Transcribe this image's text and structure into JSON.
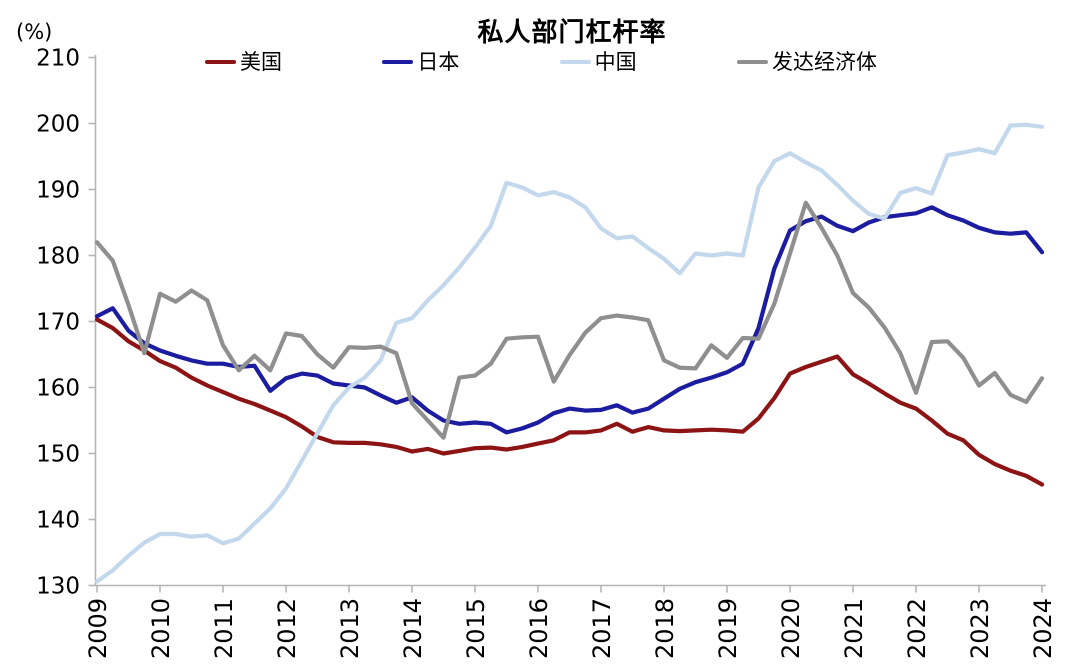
{
  "header": {
    "unit_label": "(%)",
    "title": "私人部门杠杆率"
  },
  "legend": [
    {
      "label": "美国",
      "color": "#8D1414"
    },
    {
      "label": "日本",
      "color": "#1C1CA0"
    },
    {
      "label": "中国",
      "color": "#C3D8EC"
    },
    {
      "label": "发达经济体",
      "color": "#8F8F8F"
    }
  ],
  "chart_data": {
    "type": "line",
    "title": "私人部门杠杆率",
    "ylabel": "(%)",
    "xlabel": "",
    "grid": false,
    "legend_position": "top",
    "x_frequency": "quarterly",
    "x_start": "2009Q1",
    "x_end": "2024Q1",
    "x_tick_labels": [
      "2009",
      "2010",
      "2011",
      "2012",
      "2013",
      "2014",
      "2015",
      "2016",
      "2017",
      "2018",
      "2019",
      "2020",
      "2021",
      "2022",
      "2023",
      "2024"
    ],
    "ylim": [
      130,
      210
    ],
    "y_tick_labels": [
      210,
      200,
      190,
      180,
      170,
      160,
      150,
      140,
      130
    ],
    "series": [
      {
        "id": "us",
        "name": "美国",
        "color": "#8D1414",
        "values": [
          170.3,
          169.0,
          167.0,
          165.6,
          164.0,
          163.0,
          161.5,
          160.3,
          159.3,
          158.3,
          157.5,
          156.5,
          155.5,
          154.1,
          152.5,
          151.7,
          151.6,
          151.6,
          151.4,
          151.0,
          150.3,
          150.7,
          150.0,
          150.4,
          150.8,
          150.9,
          150.6,
          151.0,
          151.5,
          152.0,
          153.2,
          153.2,
          153.5,
          154.5,
          153.3,
          154.0,
          153.5,
          153.4,
          153.5,
          153.6,
          153.5,
          153.3,
          155.3,
          158.4,
          162.1,
          163.1,
          163.9,
          164.7,
          162.0,
          160.6,
          159.1,
          157.7,
          156.8,
          155.0,
          153.0,
          152.0,
          149.8,
          148.4,
          147.4,
          146.6,
          145.3
        ]
      },
      {
        "id": "japan",
        "name": "日本",
        "color": "#1C1CA0",
        "values": [
          170.8,
          172.0,
          168.6,
          166.7,
          165.6,
          164.8,
          164.1,
          163.6,
          163.6,
          163.1,
          163.3,
          159.5,
          161.4,
          162.1,
          161.8,
          160.6,
          160.3,
          160.0,
          158.8,
          157.7,
          158.5,
          156.5,
          155.0,
          154.5,
          154.7,
          154.5,
          153.2,
          153.8,
          154.7,
          156.1,
          156.8,
          156.5,
          156.6,
          157.3,
          156.2,
          156.8,
          158.3,
          159.8,
          160.8,
          161.5,
          162.3,
          163.6,
          169.0,
          178.0,
          183.8,
          185.2,
          185.9,
          184.5,
          183.7,
          185.0,
          185.8,
          186.1,
          186.4,
          187.3,
          186.1,
          185.3,
          184.2,
          183.5,
          183.3,
          183.5,
          180.5
        ]
      },
      {
        "id": "china",
        "name": "中国",
        "color": "#C3D8EC",
        "values": [
          130.6,
          132.3,
          134.5,
          136.5,
          137.8,
          137.8,
          137.4,
          137.6,
          136.4,
          137.1,
          139.4,
          141.7,
          144.7,
          148.9,
          153.1,
          157.3,
          160.0,
          161.5,
          164.1,
          169.8,
          170.5,
          173.2,
          175.5,
          178.2,
          181.2,
          184.5,
          191.0,
          190.3,
          189.1,
          189.6,
          188.8,
          187.3,
          184.1,
          182.6,
          182.9,
          181.1,
          179.5,
          177.3,
          180.3,
          180.0,
          180.3,
          180.0,
          190.3,
          194.3,
          195.5,
          194.1,
          192.9,
          190.7,
          188.3,
          186.3,
          185.6,
          189.5,
          190.2,
          189.4,
          195.2,
          195.6,
          196.1,
          195.5,
          199.7,
          199.8,
          199.5
        ]
      },
      {
        "id": "dm",
        "name": "发达经济体",
        "color": "#8F8F8F",
        "values": [
          182.0,
          179.2,
          172.5,
          165.2,
          174.2,
          173.0,
          174.7,
          173.2,
          166.4,
          162.6,
          164.8,
          162.6,
          168.2,
          167.8,
          165.0,
          163.0,
          166.1,
          166.0,
          166.2,
          165.2,
          157.6,
          155.0,
          152.4,
          161.5,
          161.8,
          163.6,
          167.4,
          167.6,
          167.7,
          160.9,
          164.9,
          168.3,
          170.5,
          170.9,
          170.6,
          170.2,
          164.1,
          163.0,
          162.9,
          166.4,
          164.5,
          167.5,
          167.4,
          172.7,
          180.3,
          188.0,
          184.2,
          180.0,
          174.3,
          172.1,
          169.1,
          165.2,
          159.2,
          166.9,
          167.0,
          164.5,
          160.3,
          162.2,
          158.9,
          157.8,
          161.4
        ]
      }
    ],
    "axis_color": "#B5B5B5",
    "text_color": "#000000"
  }
}
